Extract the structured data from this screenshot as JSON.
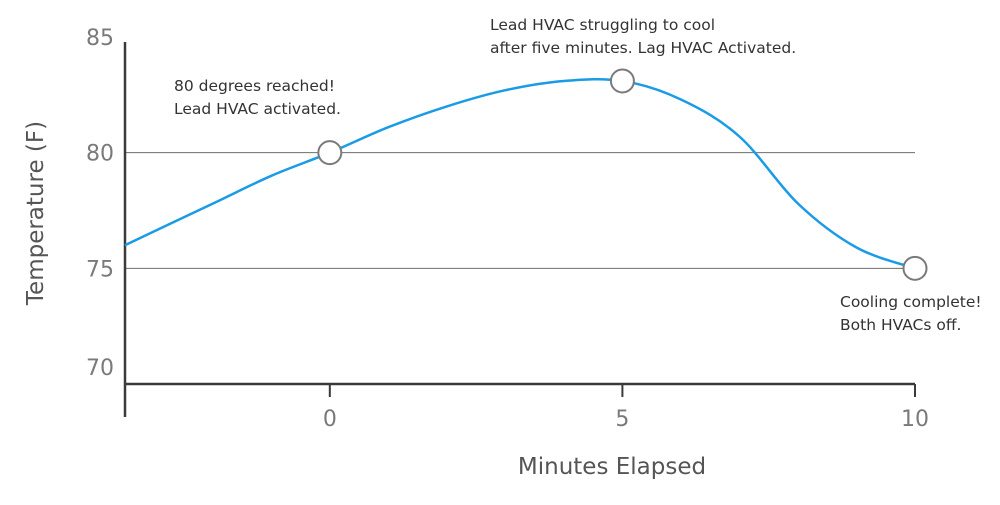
{
  "chart_data": {
    "type": "line",
    "title": "",
    "xlabel": "Minutes Elapsed",
    "ylabel": "Temperature (F)",
    "xlim": [
      -3.5,
      10
    ],
    "ylim": [
      70,
      85
    ],
    "x_ticks": [
      0,
      5,
      10
    ],
    "y_ticks": [
      70,
      75,
      80,
      85
    ],
    "x_tick_labels": [
      "0",
      "5",
      "10"
    ],
    "y_tick_labels": [
      "70",
      "75",
      "80",
      "85"
    ],
    "grid": "horizontal lines at 75 and 80",
    "legend": "none",
    "series": [
      {
        "color": "#1a9be6",
        "x": [
          -3.5,
          -2,
          -1,
          0,
          1,
          2,
          3,
          4,
          5,
          6,
          7,
          8,
          9,
          10
        ],
        "y": [
          76.0,
          77.8,
          79.0,
          80.0,
          81.1,
          82.0,
          82.7,
          83.1,
          83.1,
          82.3,
          80.7,
          77.8,
          75.9,
          75.0
        ]
      }
    ],
    "markers": [
      {
        "x": 0,
        "y": 80.0
      },
      {
        "x": 5,
        "y": 83.1
      },
      {
        "x": 10,
        "y": 75.0
      }
    ],
    "annotations": [
      {
        "lines": [
          "80 degrees reached!",
          "Lead HVAC activated."
        ]
      },
      {
        "lines": [
          "Lead HVAC struggling to cool",
          "after five minutes. Lag HVAC Activated."
        ]
      },
      {
        "lines": [
          "Cooling complete!",
          "Both HVACs off."
        ]
      }
    ]
  }
}
